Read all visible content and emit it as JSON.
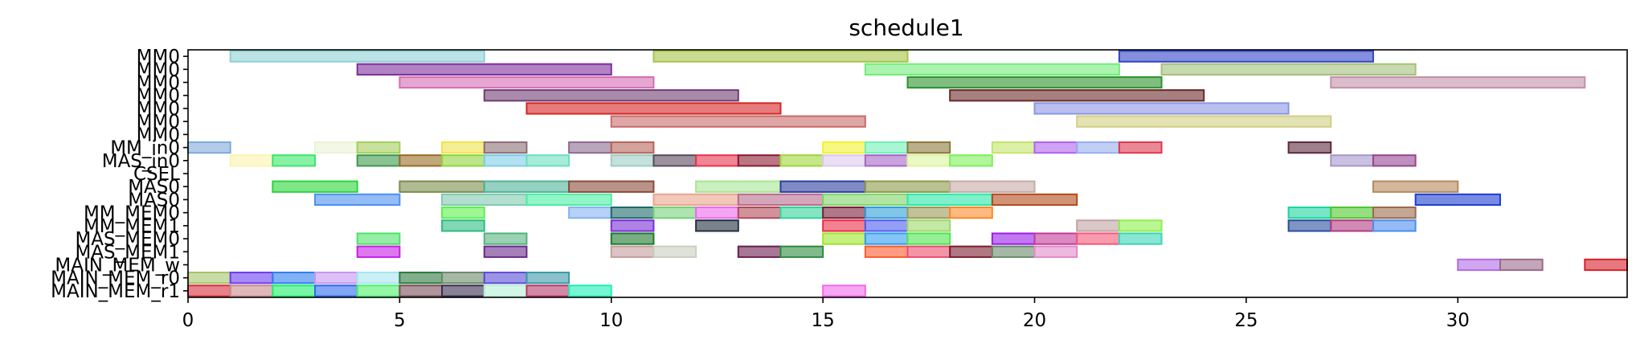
{
  "chart_data": {
    "type": "gantt",
    "title": "schedule1",
    "xlim": [
      0,
      34
    ],
    "xticks": [
      0,
      5,
      10,
      15,
      20,
      25,
      30
    ],
    "grid": false,
    "rows": [
      "MM0",
      "MM0",
      "MM0",
      "MM0",
      "MM0",
      "MM0",
      "MM0",
      "MM_in0",
      "MAS_in0",
      "CSEL",
      "MAS0",
      "MAS0",
      "MM_MEM0",
      "MM_MEM1",
      "MAS_MEM0",
      "MAS_MEM1",
      "MAIN_MEM_w",
      "MAIN_MEM_r0",
      "MAIN_MEM_r1"
    ],
    "bars": [
      {
        "row": 0,
        "start": 1,
        "end": 7,
        "color": "#8fd1d3"
      },
      {
        "row": 0,
        "start": 11,
        "end": 17,
        "color": "#a7c44a"
      },
      {
        "row": 0,
        "start": 22,
        "end": 28,
        "color": "#3244c8"
      },
      {
        "row": 1,
        "start": 4,
        "end": 10,
        "color": "#7d2f9c"
      },
      {
        "row": 1,
        "start": 16,
        "end": 22,
        "color": "#72ec7a"
      },
      {
        "row": 1,
        "start": 23,
        "end": 29,
        "color": "#a4c07c"
      },
      {
        "row": 2,
        "start": 5,
        "end": 11,
        "color": "#d36cb2"
      },
      {
        "row": 2,
        "start": 17,
        "end": 23,
        "color": "#2a922c"
      },
      {
        "row": 2,
        "start": 27,
        "end": 33,
        "color": "#c38fa8"
      },
      {
        "row": 3,
        "start": 7,
        "end": 13,
        "color": "#6f3c72"
      },
      {
        "row": 3,
        "start": 18,
        "end": 24,
        "color": "#6a2a2a"
      },
      {
        "row": 4,
        "start": 8,
        "end": 14,
        "color": "#d62525"
      },
      {
        "row": 4,
        "start": 20,
        "end": 26,
        "color": "#8b96e6"
      },
      {
        "row": 5,
        "start": 10,
        "end": 16,
        "color": "#c96a6a"
      },
      {
        "row": 5,
        "start": 21,
        "end": 27,
        "color": "#d0cf81"
      },
      {
        "row": 7,
        "start": 0,
        "end": 1,
        "color": "#7fa8d9"
      },
      {
        "row": 7,
        "start": 3,
        "end": 4,
        "color": "#eaf3d6"
      },
      {
        "row": 7,
        "start": 4,
        "end": 5,
        "color": "#a3cf59"
      },
      {
        "row": 7,
        "start": 6,
        "end": 7,
        "color": "#f0e34c"
      },
      {
        "row": 7,
        "start": 7,
        "end": 8,
        "color": "#8a6f74"
      },
      {
        "row": 7,
        "start": 9,
        "end": 10,
        "color": "#8c6b8f"
      },
      {
        "row": 7,
        "start": 10,
        "end": 11,
        "color": "#b5655a"
      },
      {
        "row": 7,
        "start": 15,
        "end": 16,
        "color": "#f2f231"
      },
      {
        "row": 7,
        "start": 16,
        "end": 17,
        "color": "#6ff0b7"
      },
      {
        "row": 7,
        "start": 17,
        "end": 18,
        "color": "#8a7a3a"
      },
      {
        "row": 7,
        "start": 19,
        "end": 20,
        "color": "#c3e56a"
      },
      {
        "row": 7,
        "start": 20,
        "end": 21,
        "color": "#b063ec"
      },
      {
        "row": 7,
        "start": 21,
        "end": 22,
        "color": "#98aef0"
      },
      {
        "row": 7,
        "start": 22,
        "end": 23,
        "color": "#dc3a4f"
      },
      {
        "row": 7,
        "start": 26,
        "end": 27,
        "color": "#5e2a3e"
      },
      {
        "row": 8,
        "start": 1,
        "end": 2,
        "color": "#fcf3b0"
      },
      {
        "row": 8,
        "start": 2,
        "end": 3,
        "color": "#3ae76a"
      },
      {
        "row": 8,
        "start": 4,
        "end": 5,
        "color": "#3c9a4c"
      },
      {
        "row": 8,
        "start": 5,
        "end": 6,
        "color": "#986c24"
      },
      {
        "row": 8,
        "start": 6,
        "end": 7,
        "color": "#8fd43a"
      },
      {
        "row": 8,
        "start": 7,
        "end": 8,
        "color": "#7fcde7"
      },
      {
        "row": 8,
        "start": 8,
        "end": 9,
        "color": "#6ae0c0"
      },
      {
        "row": 8,
        "start": 10,
        "end": 11,
        "color": "#9fcdc3"
      },
      {
        "row": 8,
        "start": 11,
        "end": 12,
        "color": "#5a4a5e"
      },
      {
        "row": 8,
        "start": 12,
        "end": 13,
        "color": "#e8334e"
      },
      {
        "row": 8,
        "start": 13,
        "end": 14,
        "color": "#8a1a30"
      },
      {
        "row": 8,
        "start": 14,
        "end": 15,
        "color": "#9ed63a"
      },
      {
        "row": 8,
        "start": 15,
        "end": 16,
        "color": "#ddc9ef"
      },
      {
        "row": 8,
        "start": 16,
        "end": 17,
        "color": "#a765c8"
      },
      {
        "row": 8,
        "start": 17,
        "end": 18,
        "color": "#ddf5a0"
      },
      {
        "row": 8,
        "start": 18,
        "end": 19,
        "color": "#7fef5a"
      },
      {
        "row": 8,
        "start": 27,
        "end": 28,
        "color": "#a796c9"
      },
      {
        "row": 8,
        "start": 28,
        "end": 29,
        "color": "#96468f"
      },
      {
        "row": 10,
        "start": 2,
        "end": 4,
        "color": "#2bd63a"
      },
      {
        "row": 10,
        "start": 5,
        "end": 7,
        "color": "#7c8c4b"
      },
      {
        "row": 10,
        "start": 7,
        "end": 9,
        "color": "#4fb49a"
      },
      {
        "row": 10,
        "start": 9,
        "end": 11,
        "color": "#8a4b3a"
      },
      {
        "row": 10,
        "start": 12,
        "end": 14,
        "color": "#a7e694"
      },
      {
        "row": 10,
        "start": 14,
        "end": 16,
        "color": "#2b3ea0"
      },
      {
        "row": 10,
        "start": 16,
        "end": 18,
        "color": "#8c9a4a"
      },
      {
        "row": 10,
        "start": 18,
        "end": 20,
        "color": "#c7aaa7"
      },
      {
        "row": 10,
        "start": 28,
        "end": 30,
        "color": "#b6895c"
      },
      {
        "row": 11,
        "start": 3,
        "end": 5,
        "color": "#4c90ef"
      },
      {
        "row": 11,
        "start": 6,
        "end": 8,
        "color": "#7fc9b0"
      },
      {
        "row": 11,
        "start": 8,
        "end": 10,
        "color": "#4aeea2"
      },
      {
        "row": 11,
        "start": 11,
        "end": 13,
        "color": "#e9a48e"
      },
      {
        "row": 11,
        "start": 13,
        "end": 15,
        "color": "#b76b8a"
      },
      {
        "row": 11,
        "start": 15,
        "end": 17,
        "color": "#7ed468"
      },
      {
        "row": 11,
        "start": 17,
        "end": 19,
        "color": "#2ae8a6"
      },
      {
        "row": 11,
        "start": 19,
        "end": 21,
        "color": "#b24b1a"
      },
      {
        "row": 11,
        "start": 29,
        "end": 31,
        "color": "#1e3ed0"
      },
      {
        "row": 12,
        "start": 6,
        "end": 7,
        "color": "#5ef04e"
      },
      {
        "row": 12,
        "start": 9,
        "end": 10,
        "color": "#86b3ef"
      },
      {
        "row": 12,
        "start": 10,
        "end": 11,
        "color": "#1e6a6a"
      },
      {
        "row": 12,
        "start": 11,
        "end": 12,
        "color": "#76d27a"
      },
      {
        "row": 12,
        "start": 12,
        "end": 13,
        "color": "#ef6aea"
      },
      {
        "row": 12,
        "start": 13,
        "end": 14,
        "color": "#b24a5a"
      },
      {
        "row": 12,
        "start": 14,
        "end": 15,
        "color": "#33d39a"
      },
      {
        "row": 12,
        "start": 15,
        "end": 16,
        "color": "#7a1f3a"
      },
      {
        "row": 12,
        "start": 16,
        "end": 17,
        "color": "#2e9ed9"
      },
      {
        "row": 12,
        "start": 17,
        "end": 18,
        "color": "#9a9a56"
      },
      {
        "row": 12,
        "start": 18,
        "end": 19,
        "color": "#fb8a2a"
      },
      {
        "row": 12,
        "start": 26,
        "end": 27,
        "color": "#1ad6a0"
      },
      {
        "row": 12,
        "start": 27,
        "end": 28,
        "color": "#4ec82e"
      },
      {
        "row": 12,
        "start": 28,
        "end": 29,
        "color": "#9c6b4c"
      },
      {
        "row": 13,
        "start": 6,
        "end": 7,
        "color": "#2ebd82"
      },
      {
        "row": 13,
        "start": 10,
        "end": 11,
        "color": "#7a2ed6"
      },
      {
        "row": 13,
        "start": 12,
        "end": 13,
        "color": "#22303e"
      },
      {
        "row": 13,
        "start": 15,
        "end": 16,
        "color": "#ea2e4a"
      },
      {
        "row": 13,
        "start": 16,
        "end": 17,
        "color": "#4e5ef0"
      },
      {
        "row": 13,
        "start": 17,
        "end": 18,
        "color": "#9cd86a"
      },
      {
        "row": 13,
        "start": 21,
        "end": 22,
        "color": "#c2a2a2"
      },
      {
        "row": 13,
        "start": 22,
        "end": 23,
        "color": "#8ef04e"
      },
      {
        "row": 13,
        "start": 26,
        "end": 27,
        "color": "#2a4e9e"
      },
      {
        "row": 13,
        "start": 27,
        "end": 28,
        "color": "#b23c82"
      },
      {
        "row": 13,
        "start": 28,
        "end": 29,
        "color": "#4e8ef0"
      },
      {
        "row": 14,
        "start": 4,
        "end": 5,
        "color": "#4ee26a"
      },
      {
        "row": 14,
        "start": 7,
        "end": 8,
        "color": "#56b47e"
      },
      {
        "row": 14,
        "start": 10,
        "end": 11,
        "color": "#1e7a2e"
      },
      {
        "row": 14,
        "start": 15,
        "end": 16,
        "color": "#9ee62a"
      },
      {
        "row": 14,
        "start": 16,
        "end": 17,
        "color": "#2e9ef0"
      },
      {
        "row": 14,
        "start": 17,
        "end": 18,
        "color": "#4ee44e"
      },
      {
        "row": 14,
        "start": 19,
        "end": 20,
        "color": "#9a1ee8"
      },
      {
        "row": 14,
        "start": 20,
        "end": 21,
        "color": "#c43a9a"
      },
      {
        "row": 14,
        "start": 21,
        "end": 22,
        "color": "#f4587a"
      },
      {
        "row": 14,
        "start": 22,
        "end": 23,
        "color": "#3ad6b6"
      },
      {
        "row": 15,
        "start": 4,
        "end": 5,
        "color": "#c81ee6"
      },
      {
        "row": 15,
        "start": 7,
        "end": 8,
        "color": "#6a2a8a"
      },
      {
        "row": 15,
        "start": 10,
        "end": 11,
        "color": "#c69c9c"
      },
      {
        "row": 15,
        "start": 11,
        "end": 12,
        "color": "#c9cfbf"
      },
      {
        "row": 15,
        "start": 13,
        "end": 14,
        "color": "#6a1e4e"
      },
      {
        "row": 15,
        "start": 14,
        "end": 15,
        "color": "#2e8a3e"
      },
      {
        "row": 15,
        "start": 16,
        "end": 17,
        "color": "#fb5a2e"
      },
      {
        "row": 15,
        "start": 17,
        "end": 18,
        "color": "#ea4e6e"
      },
      {
        "row": 15,
        "start": 18,
        "end": 19,
        "color": "#7a1e2e"
      },
      {
        "row": 15,
        "start": 19,
        "end": 20,
        "color": "#6a8a6a"
      },
      {
        "row": 15,
        "start": 20,
        "end": 21,
        "color": "#e28ac8"
      },
      {
        "row": 16,
        "start": 30,
        "end": 31,
        "color": "#b06ae6"
      },
      {
        "row": 16,
        "start": 31,
        "end": 32,
        "color": "#9a6a8a"
      },
      {
        "row": 16,
        "start": 33,
        "end": 34,
        "color": "#d6202a"
      },
      {
        "row": 17,
        "start": 0,
        "end": 1,
        "color": "#a6c46a"
      },
      {
        "row": 17,
        "start": 1,
        "end": 2,
        "color": "#6a3ef0"
      },
      {
        "row": 17,
        "start": 2,
        "end": 3,
        "color": "#2e7ef0"
      },
      {
        "row": 17,
        "start": 3,
        "end": 4,
        "color": "#c696f0"
      },
      {
        "row": 17,
        "start": 4,
        "end": 5,
        "color": "#a6e6f0"
      },
      {
        "row": 17,
        "start": 5,
        "end": 6,
        "color": "#2e7a3e"
      },
      {
        "row": 17,
        "start": 6,
        "end": 7,
        "color": "#6a8a6a"
      },
      {
        "row": 17,
        "start": 7,
        "end": 8,
        "color": "#5a4ed6"
      },
      {
        "row": 17,
        "start": 8,
        "end": 9,
        "color": "#3a9aa6"
      },
      {
        "row": 18,
        "start": 0,
        "end": 1,
        "color": "#d62e3a"
      },
      {
        "row": 18,
        "start": 1,
        "end": 2,
        "color": "#c98a8a"
      },
      {
        "row": 18,
        "start": 2,
        "end": 3,
        "color": "#1ef06a"
      },
      {
        "row": 18,
        "start": 3,
        "end": 4,
        "color": "#2e6af0"
      },
      {
        "row": 18,
        "start": 4,
        "end": 5,
        "color": "#4ef06a"
      },
      {
        "row": 18,
        "start": 5,
        "end": 6,
        "color": "#7a4e5a"
      },
      {
        "row": 18,
        "start": 6,
        "end": 7,
        "color": "#3a2e4e"
      },
      {
        "row": 18,
        "start": 7,
        "end": 8,
        "color": "#b6f0d6"
      },
      {
        "row": 18,
        "start": 8,
        "end": 9,
        "color": "#b63a6a"
      },
      {
        "row": 18,
        "start": 9,
        "end": 10,
        "color": "#1ef0b6"
      },
      {
        "row": 18,
        "start": 15,
        "end": 16,
        "color": "#f06aea"
      }
    ]
  }
}
